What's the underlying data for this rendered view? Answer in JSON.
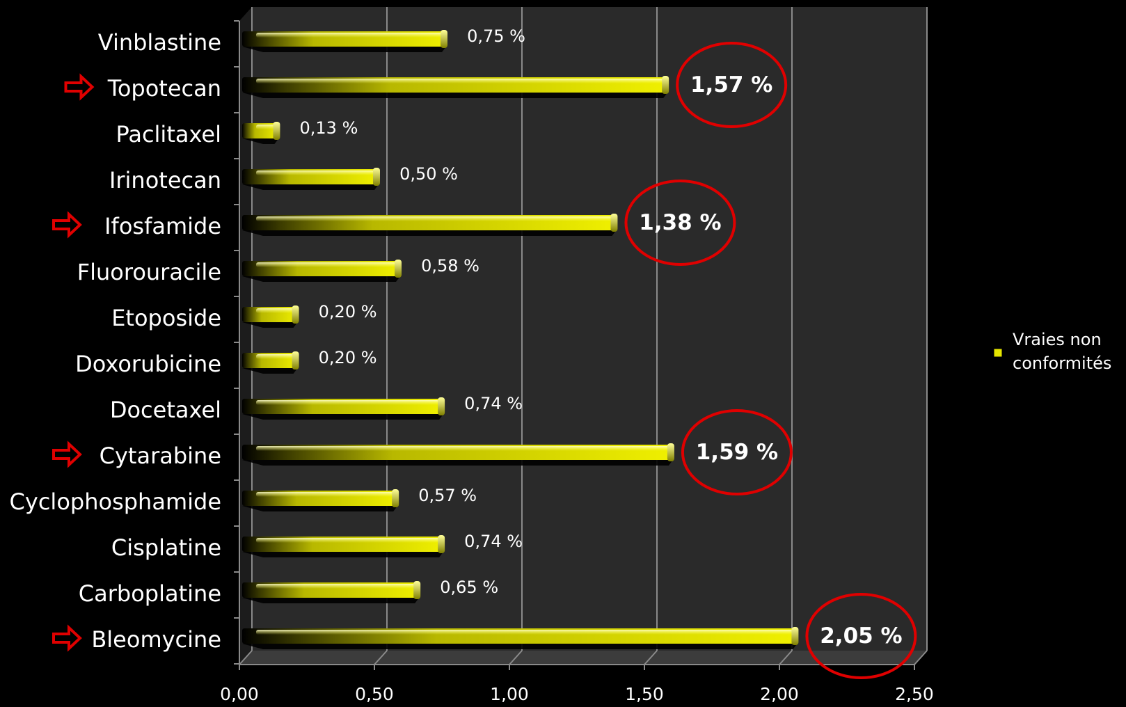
{
  "chart_data": {
    "type": "bar",
    "orientation": "horizontal",
    "categories": [
      "Vinblastine",
      "Topotecan",
      "Paclitaxel",
      "Irinotecan",
      "Ifosfamide",
      "Fluorouracile",
      "Etoposide",
      "Doxorubicine",
      "Docetaxel",
      "Cytarabine",
      "Cyclophosphamide",
      "Cisplatine",
      "Carboplatine",
      "Bleomycine"
    ],
    "series": [
      {
        "name": "Vraies non conformités",
        "values": [
          0.75,
          1.57,
          0.13,
          0.5,
          1.38,
          0.58,
          0.2,
          0.2,
          0.74,
          1.59,
          0.57,
          0.74,
          0.65,
          2.05
        ],
        "labels": [
          "0,75 %",
          "1,57 %",
          "0,13 %",
          "0,50 %",
          "1,38 %",
          "0,58 %",
          "0,20 %",
          "0,20 %",
          "0,74 %",
          "1,59 %",
          "0,57 %",
          "0,74 %",
          "0,65 %",
          "2,05 %"
        ],
        "color": "#e6e600"
      }
    ],
    "highlighted": [
      "Topotecan",
      "Ifosfamide",
      "Cytarabine",
      "Bleomycine"
    ],
    "xlim": [
      0,
      2.5
    ],
    "xticks": [
      0,
      0.5,
      1.0,
      1.5,
      2.0,
      2.5
    ],
    "xtick_labels": [
      "0,00",
      "0,50",
      "1,00",
      "1,50",
      "2,00",
      "2,50"
    ],
    "grid": true,
    "legend_position": "right",
    "title": "",
    "xlabel": "",
    "ylabel": ""
  },
  "colors": {
    "background": "#000000",
    "plot_area": "#2a2a2a",
    "bar": "#e6e600",
    "highlight_circle": "#e00000",
    "arrow": "#e00000",
    "text": "#ffffff"
  },
  "icons": {
    "highlight_marker": "red-right-arrow-icon"
  },
  "legend": {
    "line1": "Vraies non",
    "line2": "conformités"
  }
}
